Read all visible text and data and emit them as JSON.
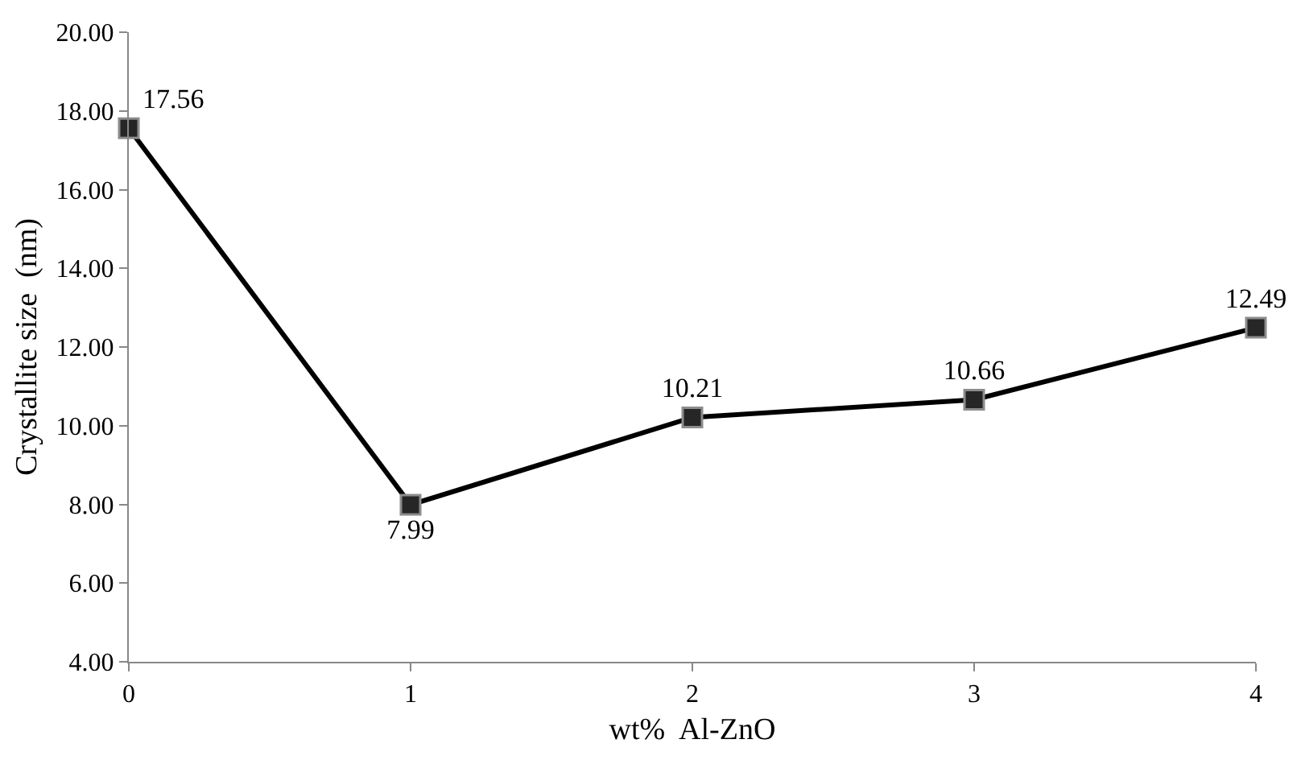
{
  "chart_data": {
    "type": "line",
    "xlabel": "wt%  Al-ZnO",
    "ylabel": "Crystallite size  (nm)",
    "x": [
      0,
      1,
      2,
      3,
      4
    ],
    "series": [
      {
        "color": "#000000",
        "values": [
          17.56,
          7.99,
          10.21,
          10.66,
          12.49
        ]
      }
    ],
    "xlim": [
      0,
      4
    ],
    "xticks": [
      0,
      1,
      2,
      3,
      4
    ],
    "ylim": [
      4,
      20
    ],
    "yticks": [
      {
        "value": 4,
        "label": "4.00"
      },
      {
        "value": 6,
        "label": "6.00"
      },
      {
        "value": 8,
        "label": "8.00"
      },
      {
        "value": 10,
        "label": "10.00"
      },
      {
        "value": 12,
        "label": "12.00"
      },
      {
        "value": 14,
        "label": "14.00"
      },
      {
        "value": 16,
        "label": "16.00"
      },
      {
        "value": 18,
        "label": "18.00"
      },
      {
        "value": 20,
        "label": "20.00"
      }
    ],
    "marker": "square",
    "line_style": "solid",
    "data_labels": true
  }
}
